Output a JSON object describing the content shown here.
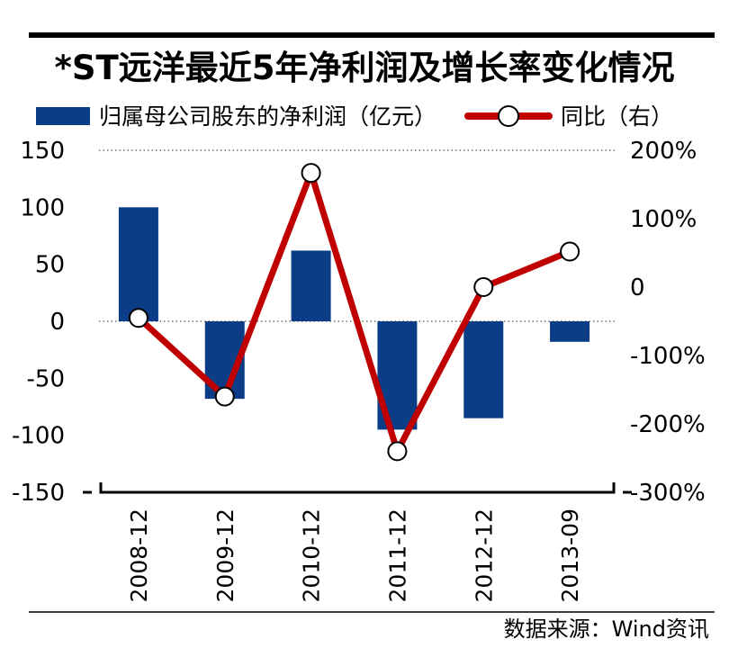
{
  "chart_data": {
    "type": "bar",
    "title": "*ST远洋最近5年净利润及增长率变化情况",
    "categories": [
      "2008-12",
      "2009-12",
      "2010-12",
      "2011-12",
      "2012-12",
      "2013-09"
    ],
    "series": [
      {
        "name": "归属母公司股东的净利润（亿元）",
        "type": "bar",
        "axis": "left",
        "color": "#0b3d86",
        "values": [
          100,
          -68,
          62,
          -95,
          -85,
          -18
        ]
      },
      {
        "name": "同比（右）",
        "type": "line",
        "axis": "right",
        "color": "#c00000",
        "values": [
          -45,
          -160,
          167,
          -240,
          0,
          52
        ]
      }
    ],
    "y_left": {
      "range": [
        -150,
        150
      ],
      "ticks": [
        150,
        100,
        50,
        0,
        -50,
        -100,
        -150
      ],
      "tick_labels": [
        "150",
        "100",
        "50",
        "0",
        "-50",
        "-100",
        "-150"
      ]
    },
    "y_right": {
      "range": [
        -300,
        200
      ],
      "ticks": [
        200,
        100,
        0,
        -100,
        -200,
        -300
      ],
      "tick_labels": [
        "200%",
        "100%",
        "0",
        "-100%",
        "-200%",
        "-300%"
      ]
    },
    "gridlines": [
      150,
      0
    ],
    "legend_position": "top",
    "source": "数据来源：Wind资讯"
  }
}
